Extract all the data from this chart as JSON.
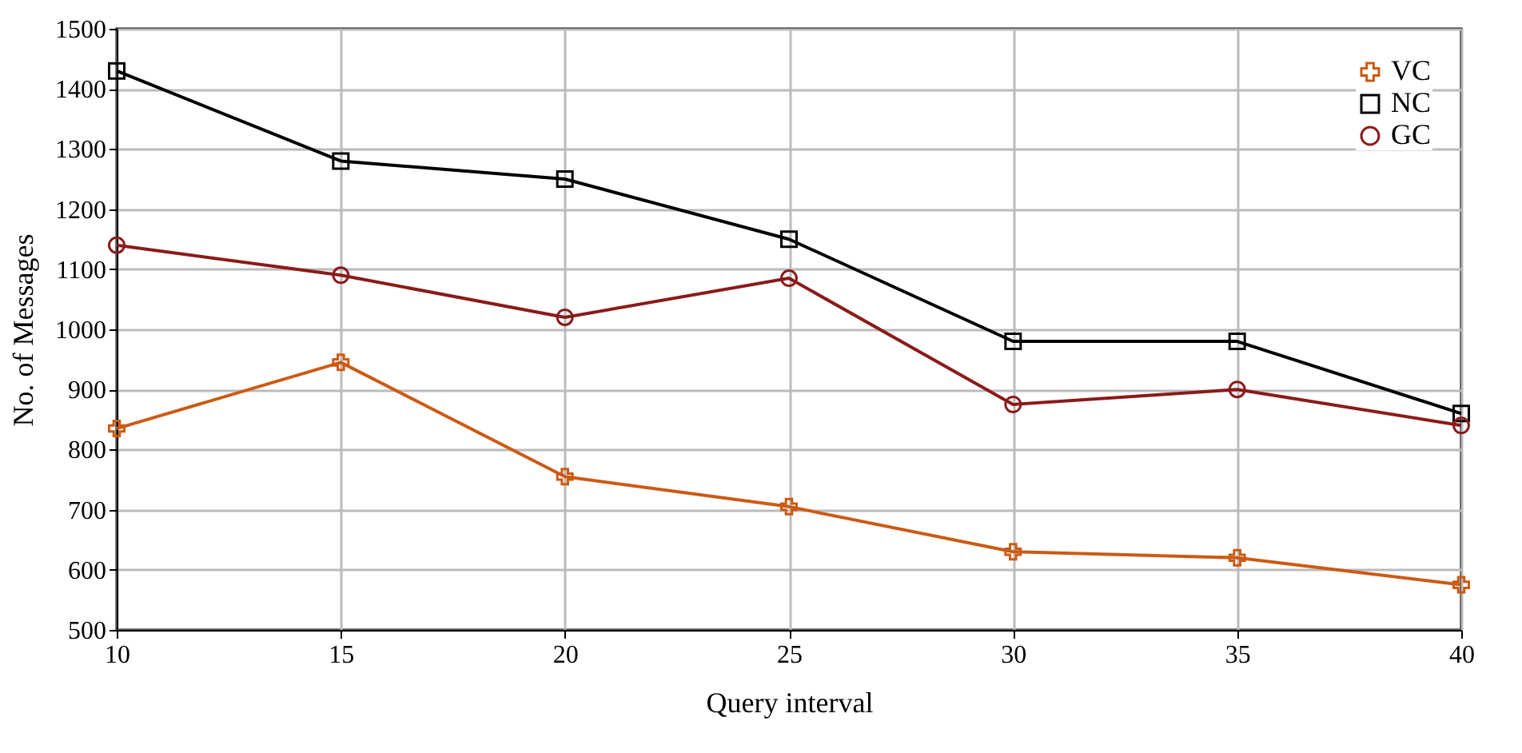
{
  "chart_data": {
    "type": "line",
    "xlabel": "Query interval",
    "ylabel": "No. of Messages",
    "x": [
      10,
      15,
      20,
      25,
      30,
      35,
      40
    ],
    "series": [
      {
        "name": "VC",
        "color": "#cc5a14",
        "marker": "cross",
        "values": [
          835,
          945,
          755,
          705,
          630,
          620,
          575
        ]
      },
      {
        "name": "NC",
        "color": "#000000",
        "marker": "square",
        "values": [
          1430,
          1280,
          1250,
          1150,
          980,
          980,
          860
        ]
      },
      {
        "name": "GC",
        "color": "#8b1a1a",
        "marker": "circle",
        "values": [
          1140,
          1090,
          1020,
          1085,
          875,
          900,
          840
        ]
      }
    ],
    "xlim": [
      10,
      40
    ],
    "xticks": [
      10,
      15,
      20,
      25,
      30,
      35,
      40
    ],
    "ylim": [
      500,
      1500
    ],
    "yticks": [
      500,
      600,
      700,
      800,
      900,
      1000,
      1100,
      1200,
      1300,
      1400,
      1500
    ],
    "grid": true,
    "legend": "top right"
  }
}
